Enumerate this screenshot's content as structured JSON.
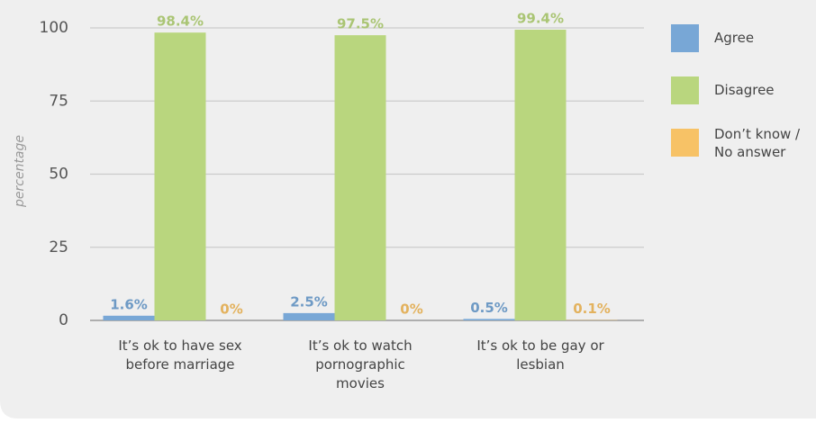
{
  "chart_data": {
    "type": "bar",
    "y_label": "percentage",
    "categories": [
      "It’s ok to have sex\nbefore marriage",
      "It’s ok to watch\npornographic\nmovies",
      "It’s ok to be gay or\nlesbian"
    ],
    "series": [
      {
        "name": "Agree",
        "color": "#78a7d6",
        "values": [
          1.6,
          2.5,
          0.5
        ],
        "value_labels": [
          "1.6%",
          "2.5%",
          "0.5%"
        ]
      },
      {
        "name": "Disagree",
        "color": "#b9d67e",
        "values": [
          98.4,
          97.5,
          99.4
        ],
        "value_labels": [
          "98.4%",
          "97.5%",
          "99.4%"
        ]
      },
      {
        "name": "Don’t know /\nNo answer",
        "color": "#f7c266",
        "values": [
          0,
          0,
          0.1
        ],
        "value_labels": [
          "0%",
          "0%",
          "0.1%"
        ]
      }
    ],
    "ylim": [
      0,
      100
    ],
    "yticks": [
      0,
      25,
      50,
      75,
      100
    ],
    "grid": true
  }
}
